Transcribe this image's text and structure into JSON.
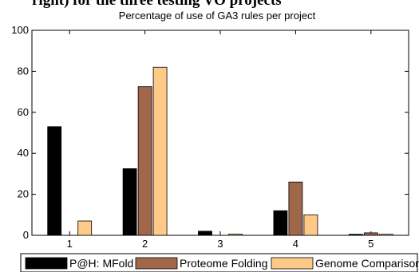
{
  "header_text": "right) for the three testing VO projects",
  "chart_data": {
    "type": "bar",
    "title": "Percentage of use of GA3 rules per project",
    "xlabel": "",
    "ylabel": "",
    "categories": [
      "1",
      "2",
      "3",
      "4",
      "5"
    ],
    "ylim": [
      0,
      100
    ],
    "yticks": [
      0,
      20,
      40,
      60,
      80,
      100
    ],
    "grid": false,
    "legend_position": "bottom",
    "series": [
      {
        "name": "P@H: MFold",
        "color": "#000000",
        "values": [
          53,
          32.5,
          2,
          12,
          0.5
        ]
      },
      {
        "name": "Proteome Folding",
        "color": "#A0674B",
        "values": [
          0,
          72.5,
          0,
          26,
          1.2
        ]
      },
      {
        "name": "Genome Comparison",
        "color": "#FFC988",
        "values": [
          7,
          82,
          0.6,
          10,
          0.5
        ]
      }
    ]
  }
}
